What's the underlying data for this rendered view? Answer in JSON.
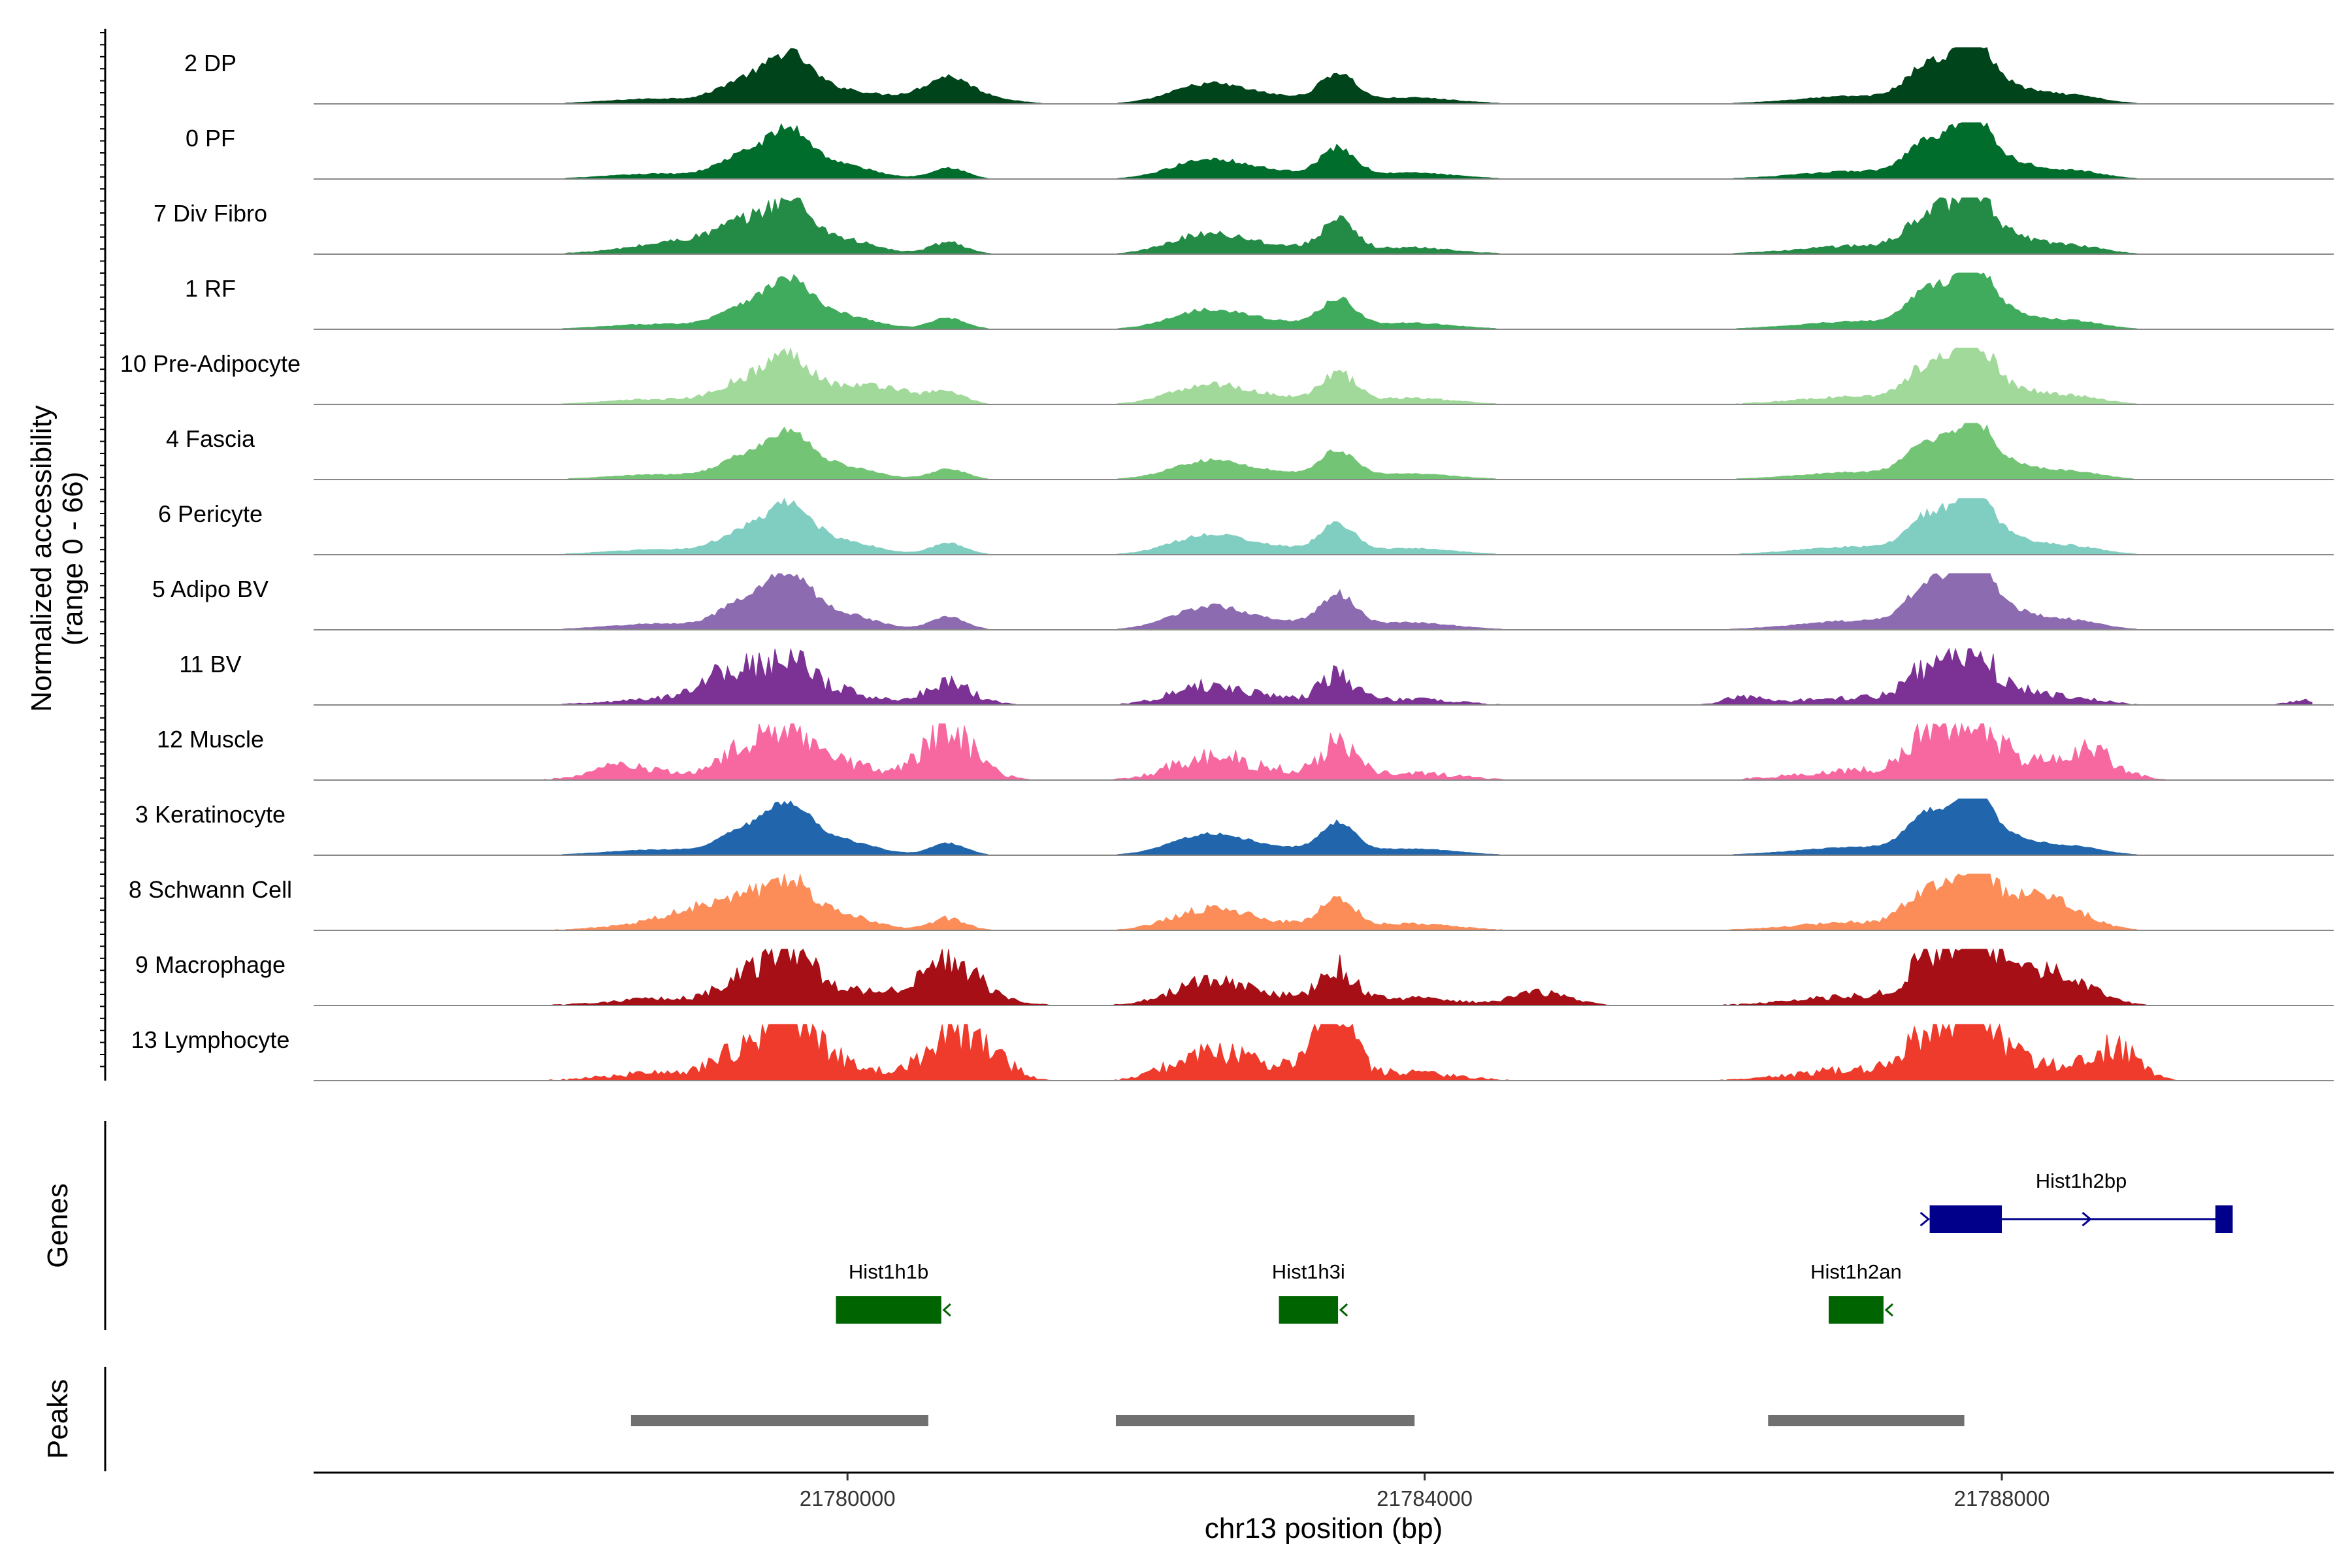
{
  "chart_data": {
    "type": "area",
    "chromosome": "chr13",
    "xlabel": "chr13 position (bp)",
    "ylabel": "Normalized accessibility",
    "ylabel_range": "(range 0 - 66)",
    "ylim": [
      0,
      66
    ],
    "xlim": [
      21776300,
      21790300
    ],
    "x_ticks": [
      {
        "value": 21780000,
        "label": "21780000"
      },
      {
        "value": 21784000,
        "label": "21784000"
      },
      {
        "value": 21788000,
        "label": "21788000"
      }
    ],
    "tracks": [
      {
        "label": "2 DP",
        "color": "#00441b",
        "scale": 0.95,
        "noise": 0.15,
        "extra": [
          [
            21780700,
            260,
            0.32
          ]
        ]
      },
      {
        "label": "0 PF",
        "color": "#006d2c",
        "scale": 0.95,
        "noise": 0.15,
        "extra": []
      },
      {
        "label": "7 Div Fibro",
        "color": "#238b45",
        "scale": 1.0,
        "noise": 0.25,
        "extra": [
          [
            21779000,
            300,
            0.18
          ]
        ]
      },
      {
        "label": "1 RF",
        "color": "#41ab5d",
        "scale": 0.95,
        "noise": 0.15,
        "extra": []
      },
      {
        "label": "10 Pre-Adipocyte",
        "color": "#a1d99b",
        "scale": 0.95,
        "noise": 0.25,
        "extra": [
          [
            21780300,
            200,
            0.25
          ]
        ]
      },
      {
        "label": "4 Fascia",
        "color": "#74c476",
        "scale": 0.9,
        "noise": 0.15,
        "extra": []
      },
      {
        "label": "6 Pericyte",
        "color": "#80cdc1",
        "scale": 0.95,
        "noise": 0.15,
        "extra": []
      },
      {
        "label": "5 Adipo BV",
        "color": "#8c6bb1",
        "scale": 1.1,
        "noise": 0.15,
        "extra": []
      },
      {
        "label": "11 BV",
        "color": "#7b3294",
        "scale": 0.9,
        "noise": 0.5,
        "extra": [
          [
            21779100,
            200,
            0.35
          ],
          [
            21780700,
            200,
            0.25
          ],
          [
            21786200,
            120,
            0.15
          ],
          [
            21790100,
            100,
            0.1
          ]
        ]
      },
      {
        "label": "12 Muscle",
        "color": "#f768a1",
        "scale": 1.15,
        "noise": 0.55,
        "extra": [
          [
            21780700,
            200,
            0.6
          ],
          [
            21778400,
            180,
            0.15
          ],
          [
            21788600,
            200,
            0.35
          ]
        ]
      },
      {
        "label": "3 Keratinocyte",
        "color": "#2166ac",
        "scale": 1.0,
        "noise": 0.1,
        "extra": []
      },
      {
        "label": "8 Schwann Cell",
        "color": "#fc8d59",
        "scale": 1.0,
        "noise": 0.3,
        "extra": [
          [
            21779000,
            250,
            0.3
          ],
          [
            21788300,
            200,
            0.4
          ]
        ]
      },
      {
        "label": "9 Macrophage",
        "color": "#a50f15",
        "scale": 1.15,
        "noise": 0.45,
        "extra": [
          [
            21780700,
            250,
            0.55
          ],
          [
            21788300,
            250,
            0.35
          ],
          [
            21784800,
            200,
            0.2
          ]
        ]
      },
      {
        "label": "13 Lymphocyte",
        "color": "#ef3b2c",
        "scale": 1.35,
        "noise": 0.6,
        "extra": [
          [
            21780700,
            180,
            0.5
          ],
          [
            21781000,
            150,
            0.3
          ],
          [
            21788800,
            150,
            0.4
          ],
          [
            21783300,
            150,
            0.3
          ]
        ]
      }
    ],
    "shared_peaks": [
      [
        21778700,
        350,
        0.1
      ],
      [
        21779300,
        180,
        0.45
      ],
      [
        21779600,
        140,
        0.75
      ],
      [
        21779900,
        250,
        0.3
      ],
      [
        21780700,
        120,
        0.22
      ],
      [
        21782500,
        250,
        0.38
      ],
      [
        21783000,
        250,
        0.12
      ],
      [
        21783400,
        120,
        0.55
      ],
      [
        21783900,
        300,
        0.12
      ],
      [
        21787000,
        400,
        0.15
      ],
      [
        21787500,
        150,
        0.7
      ],
      [
        21787800,
        120,
        0.95
      ],
      [
        21788000,
        220,
        0.35
      ],
      [
        21788500,
        200,
        0.15
      ]
    ],
    "genes_track_label": "Genes",
    "genes": [
      {
        "name": "Hist1h1b",
        "strand": "-",
        "start": 21779920,
        "end": 21780650,
        "color": "#006400"
      },
      {
        "name": "Hist1h3i",
        "strand": "-",
        "start": 21782990,
        "end": 21783400,
        "color": "#006400"
      },
      {
        "name": "Hist1h2an",
        "strand": "-",
        "start": 21786800,
        "end": 21787180,
        "color": "#006400"
      },
      {
        "name": "Hist1h2bp",
        "strand": "+",
        "start": 21787500,
        "end": 21789600,
        "color": "#00008b",
        "exons": [
          [
            21787500,
            21788000
          ],
          [
            21789480,
            21789600
          ]
        ]
      }
    ],
    "peaks_track_label": "Peaks",
    "peaks": [
      {
        "start": 21778500,
        "end": 21780560
      },
      {
        "start": 21781860,
        "end": 21783930
      },
      {
        "start": 21786380,
        "end": 21787740
      }
    ],
    "peak_color": "#707070"
  }
}
